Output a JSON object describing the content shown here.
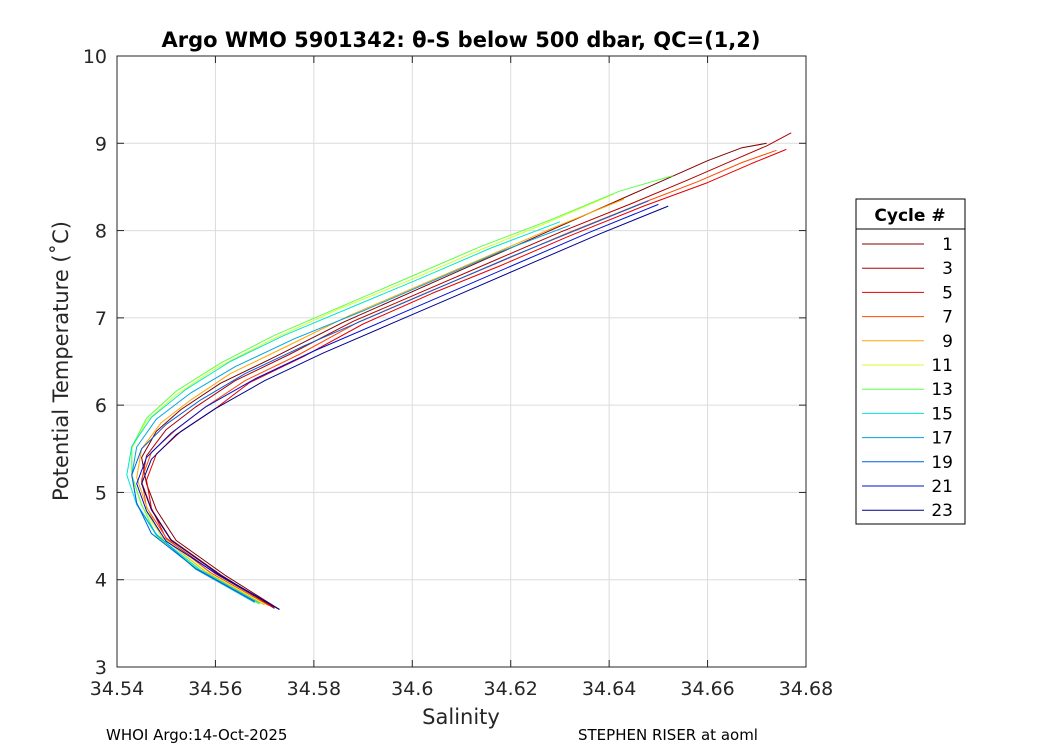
{
  "chart_data": {
    "type": "line",
    "title": "Argo WMO 5901342: θ-S below 500 dbar,  QC=(1,2)",
    "xlabel": "Salinity",
    "ylabel": "Potential Temperature (˚C)",
    "xlim": [
      34.54,
      34.68
    ],
    "ylim": [
      3,
      10
    ],
    "xticks": [
      "34.54",
      "34.56",
      "34.58",
      "34.6",
      "34.62",
      "34.64",
      "34.66",
      "34.68"
    ],
    "yticks": [
      "3",
      "4",
      "5",
      "6",
      "7",
      "8",
      "9",
      "10"
    ],
    "grid": true,
    "legend_title": "Cycle #",
    "legend_position": "right",
    "series": [
      {
        "name": "1",
        "color": "#7f0000",
        "points": [
          [
            34.573,
            3.66
          ],
          [
            34.562,
            4.05
          ],
          [
            34.552,
            4.45
          ],
          [
            34.548,
            4.8
          ],
          [
            34.546,
            5.1
          ],
          [
            34.545,
            5.4
          ],
          [
            34.548,
            5.7
          ],
          [
            34.553,
            5.95
          ],
          [
            34.561,
            6.25
          ],
          [
            34.572,
            6.55
          ],
          [
            34.586,
            6.95
          ],
          [
            34.6,
            7.3
          ],
          [
            34.614,
            7.65
          ],
          [
            34.628,
            8.0
          ],
          [
            34.642,
            8.35
          ],
          [
            34.652,
            8.6
          ],
          [
            34.66,
            8.8
          ],
          [
            34.667,
            8.95
          ],
          [
            34.672,
            9.0
          ]
        ]
      },
      {
        "name": "3",
        "color": "#b00000",
        "points": [
          [
            34.572,
            3.67
          ],
          [
            34.561,
            4.06
          ],
          [
            34.551,
            4.46
          ],
          [
            34.547,
            4.81
          ],
          [
            34.545,
            5.12
          ],
          [
            34.546,
            5.42
          ],
          [
            34.55,
            5.72
          ],
          [
            34.556,
            5.98
          ],
          [
            34.564,
            6.28
          ],
          [
            34.575,
            6.58
          ],
          [
            34.588,
            6.96
          ],
          [
            34.602,
            7.3
          ],
          [
            34.616,
            7.64
          ],
          [
            34.63,
            7.98
          ],
          [
            34.645,
            8.32
          ],
          [
            34.656,
            8.58
          ],
          [
            34.665,
            8.8
          ],
          [
            34.672,
            8.97
          ],
          [
            34.677,
            9.12
          ]
        ]
      },
      {
        "name": "5",
        "color": "#e30000",
        "points": [
          [
            34.572,
            3.68
          ],
          [
            34.56,
            4.07
          ],
          [
            34.55,
            4.47
          ],
          [
            34.547,
            4.82
          ],
          [
            34.546,
            5.14
          ],
          [
            34.548,
            5.44
          ],
          [
            34.553,
            5.7
          ],
          [
            34.56,
            5.96
          ],
          [
            34.567,
            6.26
          ],
          [
            34.578,
            6.56
          ],
          [
            34.59,
            6.93
          ],
          [
            34.604,
            7.28
          ],
          [
            34.618,
            7.6
          ],
          [
            34.632,
            7.94
          ],
          [
            34.647,
            8.28
          ],
          [
            34.66,
            8.55
          ],
          [
            34.669,
            8.77
          ],
          [
            34.676,
            8.93
          ]
        ]
      },
      {
        "name": "7",
        "color": "#ff4a00",
        "points": [
          [
            34.571,
            3.7
          ],
          [
            34.559,
            4.08
          ],
          [
            34.55,
            4.48
          ],
          [
            34.546,
            4.83
          ],
          [
            34.545,
            5.15
          ],
          [
            34.547,
            5.46
          ],
          [
            34.552,
            5.72
          ],
          [
            34.558,
            5.98
          ],
          [
            34.566,
            6.28
          ],
          [
            34.577,
            6.58
          ],
          [
            34.589,
            6.95
          ],
          [
            34.603,
            7.29
          ],
          [
            34.617,
            7.62
          ],
          [
            34.631,
            7.96
          ],
          [
            34.646,
            8.3
          ],
          [
            34.658,
            8.56
          ],
          [
            34.667,
            8.78
          ],
          [
            34.674,
            8.92
          ]
        ]
      },
      {
        "name": "9",
        "color": "#ffa500",
        "points": [
          [
            34.57,
            3.71
          ],
          [
            34.558,
            4.09
          ],
          [
            34.549,
            4.49
          ],
          [
            34.546,
            4.84
          ],
          [
            34.544,
            5.17
          ],
          [
            34.545,
            5.5
          ],
          [
            34.549,
            5.8
          ],
          [
            34.555,
            6.06
          ],
          [
            34.563,
            6.36
          ],
          [
            34.574,
            6.66
          ],
          [
            34.587,
            7.02
          ],
          [
            34.601,
            7.36
          ],
          [
            34.615,
            7.7
          ],
          [
            34.629,
            8.04
          ],
          [
            34.643,
            8.36
          ]
        ]
      },
      {
        "name": "11",
        "color": "#d4ff2b",
        "points": [
          [
            34.57,
            3.72
          ],
          [
            34.558,
            4.1
          ],
          [
            34.549,
            4.5
          ],
          [
            34.545,
            4.85
          ],
          [
            34.543,
            5.18
          ],
          [
            34.543,
            5.5
          ],
          [
            34.546,
            5.82
          ],
          [
            34.552,
            6.12
          ],
          [
            34.56,
            6.42
          ],
          [
            34.571,
            6.74
          ],
          [
            34.585,
            7.1
          ],
          [
            34.599,
            7.42
          ],
          [
            34.613,
            7.76
          ],
          [
            34.627,
            8.08
          ],
          [
            34.641,
            8.42
          ]
        ]
      },
      {
        "name": "13",
        "color": "#5bff4a",
        "points": [
          [
            34.569,
            3.72
          ],
          [
            34.557,
            4.1
          ],
          [
            34.548,
            4.5
          ],
          [
            34.545,
            4.86
          ],
          [
            34.543,
            5.2
          ],
          [
            34.543,
            5.52
          ],
          [
            34.546,
            5.85
          ],
          [
            34.552,
            6.16
          ],
          [
            34.561,
            6.48
          ],
          [
            34.572,
            6.8
          ],
          [
            34.586,
            7.14
          ],
          [
            34.6,
            7.48
          ],
          [
            34.614,
            7.82
          ],
          [
            34.628,
            8.12
          ],
          [
            34.642,
            8.45
          ],
          [
            34.653,
            8.63
          ]
        ]
      },
      {
        "name": "15",
        "color": "#00e6d4",
        "points": [
          [
            34.569,
            3.73
          ],
          [
            34.557,
            4.11
          ],
          [
            34.548,
            4.51
          ],
          [
            34.544,
            4.86
          ],
          [
            34.542,
            5.2
          ],
          [
            34.543,
            5.53
          ],
          [
            34.547,
            5.86
          ],
          [
            34.554,
            6.18
          ],
          [
            34.563,
            6.5
          ],
          [
            34.574,
            6.8
          ],
          [
            34.588,
            7.13
          ],
          [
            34.602,
            7.46
          ],
          [
            34.616,
            7.8
          ],
          [
            34.63,
            8.1
          ]
        ]
      },
      {
        "name": "17",
        "color": "#00a6e0",
        "points": [
          [
            34.568,
            3.74
          ],
          [
            34.556,
            4.12
          ],
          [
            34.548,
            4.52
          ],
          [
            34.544,
            4.87
          ],
          [
            34.543,
            5.2
          ],
          [
            34.544,
            5.52
          ],
          [
            34.548,
            5.84
          ],
          [
            34.555,
            6.14
          ],
          [
            34.564,
            6.44
          ],
          [
            34.576,
            6.76
          ],
          [
            34.59,
            7.08
          ],
          [
            34.604,
            7.42
          ],
          [
            34.618,
            7.76
          ],
          [
            34.632,
            8.06
          ]
        ]
      },
      {
        "name": "19",
        "color": "#0060e0",
        "points": [
          [
            34.568,
            3.75
          ],
          [
            34.556,
            4.13
          ],
          [
            34.547,
            4.53
          ],
          [
            34.544,
            4.88
          ],
          [
            34.543,
            5.2
          ],
          [
            34.545,
            5.5
          ],
          [
            34.55,
            5.78
          ],
          [
            34.557,
            6.06
          ],
          [
            34.566,
            6.36
          ],
          [
            34.578,
            6.68
          ],
          [
            34.592,
            7.02
          ],
          [
            34.606,
            7.36
          ],
          [
            34.62,
            7.7
          ],
          [
            34.634,
            8.02
          ],
          [
            34.648,
            8.34
          ]
        ]
      },
      {
        "name": "21",
        "color": "#0010d0",
        "points": [
          [
            34.573,
            3.66
          ],
          [
            34.561,
            4.04
          ],
          [
            34.55,
            4.44
          ],
          [
            34.546,
            4.79
          ],
          [
            34.544,
            5.1
          ],
          [
            34.546,
            5.4
          ],
          [
            34.551,
            5.68
          ],
          [
            34.558,
            5.98
          ],
          [
            34.568,
            6.3
          ],
          [
            34.58,
            6.62
          ],
          [
            34.594,
            6.96
          ],
          [
            34.608,
            7.3
          ],
          [
            34.622,
            7.64
          ],
          [
            34.636,
            7.98
          ],
          [
            34.65,
            8.3
          ]
        ]
      },
      {
        "name": "23",
        "color": "#00008f",
        "points": [
          [
            34.573,
            3.66
          ],
          [
            34.561,
            4.05
          ],
          [
            34.551,
            4.45
          ],
          [
            34.547,
            4.8
          ],
          [
            34.545,
            5.1
          ],
          [
            34.547,
            5.38
          ],
          [
            34.552,
            5.66
          ],
          [
            34.56,
            5.96
          ],
          [
            34.57,
            6.28
          ],
          [
            34.582,
            6.6
          ],
          [
            34.596,
            6.94
          ],
          [
            34.61,
            7.28
          ],
          [
            34.624,
            7.62
          ],
          [
            34.638,
            7.96
          ],
          [
            34.652,
            8.28
          ]
        ]
      }
    ]
  },
  "footer": {
    "left": "WHOI Argo:14-Oct-2025",
    "right": "STEPHEN RISER at aoml"
  }
}
